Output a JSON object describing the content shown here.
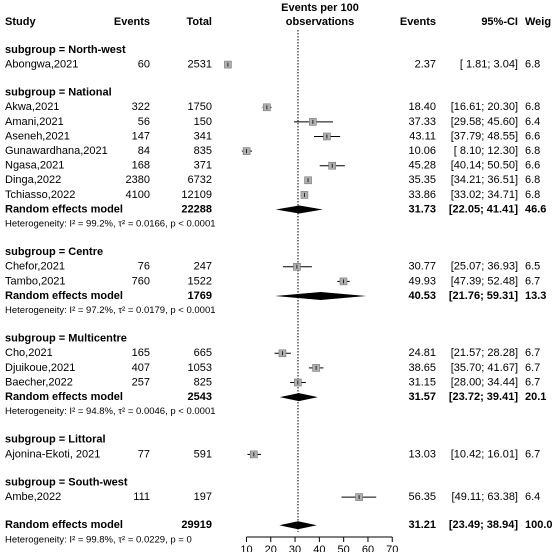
{
  "chart_data": {
    "type": "forest",
    "columns": {
      "study": "Study",
      "events": "Events",
      "total": "Total",
      "plot": [
        "Events per 100",
        "observations"
      ],
      "events2": "Events",
      "ci": "95%-CI",
      "weight": "Weig"
    },
    "xlim": [
      10,
      70
    ],
    "xticks": [
      10,
      20,
      30,
      40,
      50,
      60,
      70
    ],
    "rows": [
      {
        "kind": "group",
        "label": "subgroup = North-west"
      },
      {
        "kind": "study",
        "label": "Abongwa,2021",
        "events": 60,
        "total": 2531,
        "est": 2.37,
        "lo": 1.81,
        "hi": 3.04,
        "ci_label": "[ 1.81; 3.04]",
        "weight": "6.8"
      },
      {
        "kind": "group",
        "label": "subgroup = National"
      },
      {
        "kind": "study",
        "label": "Akwa,2021",
        "events": 322,
        "total": 1750,
        "est": 18.4,
        "est_label": "18.40",
        "lo": 16.61,
        "hi": 20.3,
        "ci_label": "[16.61; 20.30]",
        "weight": "6.8"
      },
      {
        "kind": "study",
        "label": "Amani,2021",
        "events": 56,
        "total": 150,
        "est": 37.33,
        "lo": 29.58,
        "hi": 45.6,
        "ci_label": "[29.58; 45.60]",
        "weight": "6.4"
      },
      {
        "kind": "study",
        "label": "Aseneh,2021",
        "events": 147,
        "total": 341,
        "est": 43.11,
        "lo": 37.79,
        "hi": 48.55,
        "ci_label": "[37.79; 48.55]",
        "weight": "6.6"
      },
      {
        "kind": "study",
        "label": "Gunawardhana,2021",
        "events": 84,
        "total": 835,
        "est": 10.06,
        "lo": 8.1,
        "hi": 12.3,
        "ci_label": "[ 8.10; 12.30]",
        "weight": "6.8"
      },
      {
        "kind": "study",
        "label": "Ngasa,2021",
        "events": 168,
        "total": 371,
        "est": 45.28,
        "lo": 40.14,
        "hi": 50.5,
        "ci_label": "[40.14; 50.50]",
        "weight": "6.6"
      },
      {
        "kind": "study",
        "label": "Dinga,2022",
        "events": 2380,
        "total": 6732,
        "est": 35.35,
        "lo": 34.21,
        "hi": 36.51,
        "ci_label": "[34.21; 36.51]",
        "weight": "6.8"
      },
      {
        "kind": "study",
        "label": "Tchiasso,2022",
        "events": 4100,
        "total": 12109,
        "est": 33.86,
        "lo": 33.02,
        "hi": 34.71,
        "ci_label": "[33.02; 34.71]",
        "weight": "6.8"
      },
      {
        "kind": "pooled",
        "label": "Random effects model",
        "total": 22288,
        "est": 31.73,
        "lo": 22.05,
        "hi": 41.41,
        "ci_label": "[22.05; 41.41]",
        "weight": "46.6"
      },
      {
        "kind": "het",
        "label": "Heterogeneity: I² = 99.2%, τ² = 0.0166, p < 0.0001"
      },
      {
        "kind": "group",
        "label": "subgroup = Centre"
      },
      {
        "kind": "study",
        "label": "Chefor,2021",
        "events": 76,
        "total": 247,
        "est": 30.77,
        "lo": 25.07,
        "hi": 36.93,
        "ci_label": "[25.07; 36.93]",
        "weight": "6.5"
      },
      {
        "kind": "study",
        "label": "Tambo,2021",
        "events": 760,
        "total": 1522,
        "est": 49.93,
        "lo": 47.39,
        "hi": 52.48,
        "ci_label": "[47.39; 52.48]",
        "weight": "6.7"
      },
      {
        "kind": "pooled",
        "label": "Random effects model",
        "total": 1769,
        "est": 40.53,
        "lo": 21.76,
        "hi": 59.31,
        "ci_label": "[21.76; 59.31]",
        "weight": "13.3"
      },
      {
        "kind": "het",
        "label": "Heterogeneity: I² = 97.2%, τ² = 0.0179, p < 0.0001"
      },
      {
        "kind": "group",
        "label": "subgroup = Multicentre"
      },
      {
        "kind": "study",
        "label": "Cho,2021",
        "events": 165,
        "total": 665,
        "est": 24.81,
        "lo": 21.57,
        "hi": 28.28,
        "ci_label": "[21.57; 28.28]",
        "weight": "6.7"
      },
      {
        "kind": "study",
        "label": "Djuikoue,2021",
        "events": 407,
        "total": 1053,
        "est": 38.65,
        "lo": 35.7,
        "hi": 41.67,
        "ci_label": "[35.70; 41.67]",
        "weight": "6.7"
      },
      {
        "kind": "study",
        "label": "Baecher,2022",
        "events": 257,
        "total": 825,
        "est": 31.15,
        "lo": 28.0,
        "hi": 34.44,
        "ci_label": "[28.00; 34.44]",
        "weight": "6.7"
      },
      {
        "kind": "pooled",
        "label": "Random effects model",
        "total": 2543,
        "est": 31.57,
        "lo": 23.72,
        "hi": 39.41,
        "ci_label": "[23.72; 39.41]",
        "weight": "20.1"
      },
      {
        "kind": "het",
        "label": "Heterogeneity: I² = 94.8%, τ² = 0.0046, p < 0.0001"
      },
      {
        "kind": "group",
        "label": "subgroup = Littoral"
      },
      {
        "kind": "study",
        "label": "Ajonina-Ekoti, 2021",
        "events": 77,
        "total": 591,
        "est": 13.03,
        "lo": 10.42,
        "hi": 16.01,
        "ci_label": "[10.42; 16.01]",
        "weight": "6.7"
      },
      {
        "kind": "group",
        "label": "subgroup = South-west"
      },
      {
        "kind": "study",
        "label": "Ambe,2022",
        "events": 111,
        "total": 197,
        "est": 56.35,
        "lo": 49.11,
        "hi": 63.38,
        "ci_label": "[49.11; 63.38]",
        "weight": "6.4"
      },
      {
        "kind": "overall",
        "label": "Random effects model",
        "total": 29919,
        "est": 31.21,
        "lo": 23.49,
        "hi": 38.94,
        "ci_label": "[23.49; 38.94]",
        "weight": "100.0"
      },
      {
        "kind": "het",
        "label": "Heterogeneity: I² = 99.8%, τ² = 0.0229, p = 0"
      }
    ]
  }
}
